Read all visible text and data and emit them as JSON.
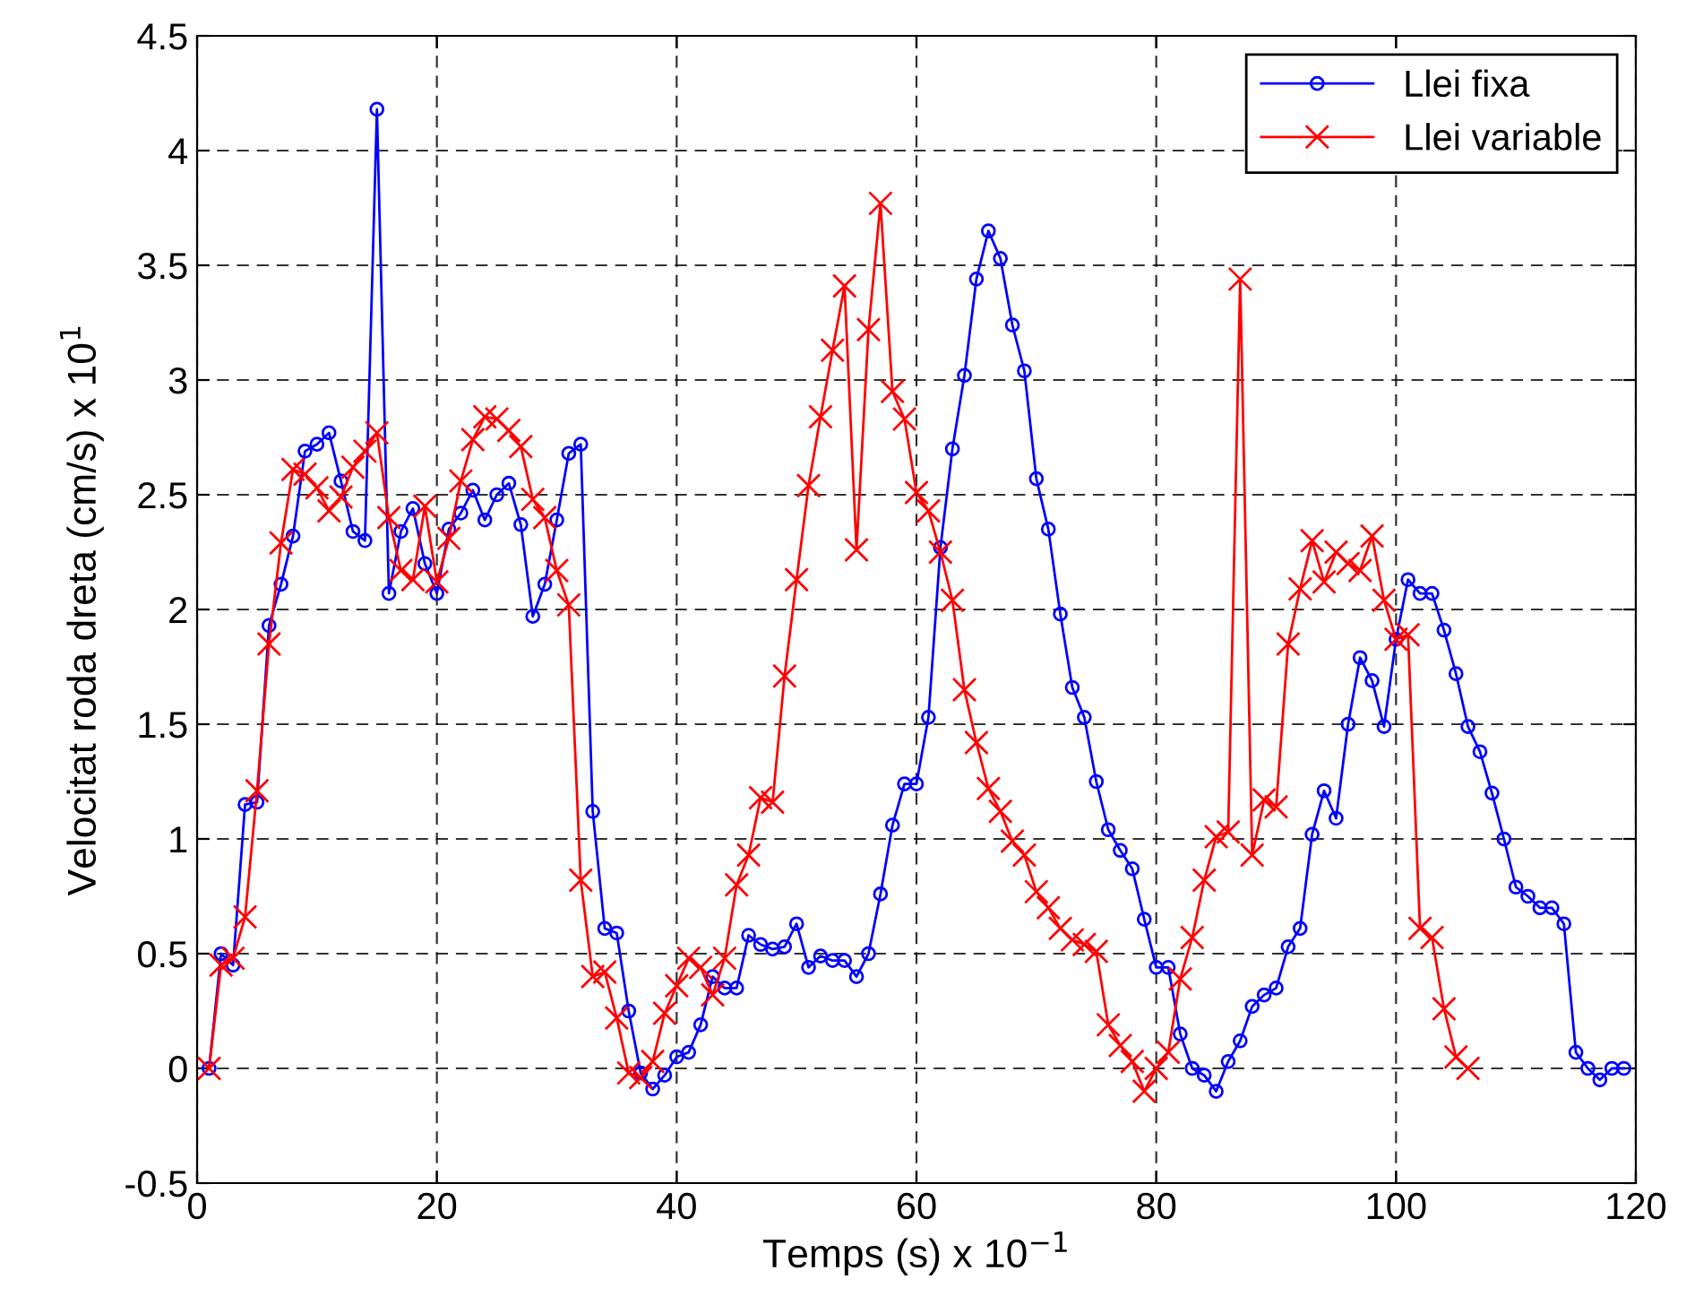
{
  "chart_data": {
    "type": "line",
    "xlabel": "Temps (s) x 10$^{−1}$",
    "ylabel": "Velocitat roda dreta (cm/s) x 10$^{1}$",
    "xlim": [
      0,
      120
    ],
    "xticks": [
      0,
      20,
      40,
      60,
      80,
      100,
      120
    ],
    "ylim": [
      -0.5,
      4.5
    ],
    "yticks": [
      -0.5,
      0,
      0.5,
      1,
      1.5,
      2,
      2.5,
      3,
      3.5,
      4,
      4.5
    ],
    "grid": true,
    "legend": "top right",
    "line_style": "solid",
    "series": [
      {
        "name": "Llei fixa",
        "color": "#0000ff",
        "marker": "circle",
        "x": [
          1,
          2,
          3,
          4,
          5,
          6,
          7,
          8,
          9,
          10,
          11,
          12,
          13,
          14,
          15,
          16,
          17,
          18,
          19,
          20,
          21,
          22,
          23,
          24,
          25,
          26,
          27,
          28,
          29,
          30,
          31,
          32,
          33,
          34,
          35,
          36,
          37,
          38,
          39,
          40,
          41,
          42,
          43,
          44,
          45,
          46,
          47,
          48,
          49,
          50,
          51,
          52,
          53,
          54,
          55,
          56,
          57,
          58,
          59,
          60,
          61,
          62,
          63,
          64,
          65,
          66,
          67,
          68,
          69,
          70,
          71,
          72,
          73,
          74,
          75,
          76,
          77,
          78,
          79,
          80,
          81,
          82,
          83,
          84,
          85,
          86,
          87,
          88,
          89,
          90,
          91,
          92,
          93,
          94,
          95,
          96,
          97,
          98,
          99,
          100,
          101,
          102,
          103,
          104,
          105,
          106,
          107,
          108,
          109,
          110,
          111,
          112,
          113,
          114,
          115,
          116,
          117,
          118,
          119
        ],
        "values": [
          0,
          0.5,
          0.45,
          1.15,
          1.16,
          1.93,
          2.11,
          2.32,
          2.69,
          2.72,
          2.77,
          2.56,
          2.34,
          2.3,
          4.18,
          2.07,
          2.34,
          2.44,
          2.2,
          2.07,
          2.35,
          2.42,
          2.52,
          2.39,
          2.5,
          2.55,
          2.37,
          1.97,
          2.11,
          2.39,
          2.68,
          2.72,
          1.12,
          0.61,
          0.59,
          0.25,
          -0.02,
          -0.09,
          -0.03,
          0.05,
          0.07,
          0.19,
          0.4,
          0.35,
          0.35,
          0.58,
          0.54,
          0.52,
          0.53,
          0.63,
          0.44,
          0.49,
          0.47,
          0.47,
          0.4,
          0.5,
          0.76,
          1.06,
          1.24,
          1.24,
          1.53,
          2.27,
          2.7,
          3.02,
          3.44,
          3.65,
          3.53,
          3.24,
          3.04,
          2.57,
          2.35,
          1.98,
          1.66,
          1.53,
          1.25,
          1.04,
          0.95,
          0.87,
          0.65,
          0.44,
          0.44,
          0.15,
          0,
          -0.03,
          -0.1,
          0.03,
          0.12,
          0.27,
          0.32,
          0.35,
          0.53,
          0.61,
          1.02,
          1.21,
          1.09,
          1.5,
          1.79,
          1.69,
          1.49,
          1.87,
          2.13,
          2.07,
          2.07,
          1.91,
          1.72,
          1.49,
          1.38,
          1.2,
          1.0,
          0.79,
          0.75,
          0.7,
          0.7,
          0.63,
          0.07,
          0,
          -0.05,
          0,
          0
        ]
      },
      {
        "name": "Llei variable",
        "color": "#ff0000",
        "marker": "cross",
        "x": [
          1,
          2,
          3,
          4,
          5,
          6,
          7,
          8,
          9,
          10,
          11,
          12,
          13,
          14,
          15,
          16,
          17,
          18,
          19,
          20,
          21,
          22,
          23,
          24,
          25,
          26,
          27,
          28,
          29,
          30,
          31,
          32,
          33,
          34,
          35,
          36,
          37,
          38,
          39,
          40,
          41,
          42,
          43,
          44,
          45,
          46,
          47,
          48,
          49,
          50,
          51,
          52,
          53,
          54,
          55,
          56,
          57,
          58,
          59,
          60,
          61,
          62,
          63,
          64,
          65,
          66,
          67,
          68,
          69,
          70,
          71,
          72,
          73,
          74,
          75,
          76,
          77,
          78,
          79,
          80,
          81,
          82,
          83,
          84,
          85,
          86,
          87,
          88,
          89,
          90,
          91,
          92,
          93,
          94,
          95,
          96,
          97,
          98,
          99,
          100,
          101,
          102,
          103,
          104,
          105,
          106
        ],
        "values": [
          0,
          0.45,
          0.48,
          0.66,
          1.21,
          1.85,
          2.29,
          2.61,
          2.59,
          2.53,
          2.43,
          2.49,
          2.62,
          2.69,
          2.77,
          2.4,
          2.17,
          2.13,
          2.45,
          2.12,
          2.31,
          2.56,
          2.74,
          2.84,
          2.83,
          2.78,
          2.71,
          2.48,
          2.4,
          2.17,
          2.02,
          0.82,
          0.4,
          0.42,
          0.22,
          -0.02,
          -0.04,
          0.03,
          0.24,
          0.36,
          0.48,
          0.44,
          0.32,
          0.48,
          0.8,
          0.93,
          1.18,
          1.16,
          1.71,
          2.13,
          2.54,
          2.84,
          3.13,
          3.41,
          2.26,
          3.22,
          3.77,
          2.95,
          2.83,
          2.51,
          2.43,
          2.25,
          2.04,
          1.65,
          1.42,
          1.22,
          1.12,
          0.99,
          0.93,
          0.77,
          0.7,
          0.61,
          0.56,
          0.54,
          0.51,
          0.19,
          0.1,
          0.03,
          -0.1,
          0,
          0.07,
          0.39,
          0.57,
          0.82,
          1.01,
          1.03,
          3.44,
          0.93,
          1.17,
          1.14,
          1.85,
          2.09,
          2.3,
          2.12,
          2.25,
          2.2,
          2.17,
          2.32,
          2.04,
          1.87,
          1.89,
          0.61,
          0.57,
          0.26,
          0.05,
          0
        ]
      }
    ]
  }
}
